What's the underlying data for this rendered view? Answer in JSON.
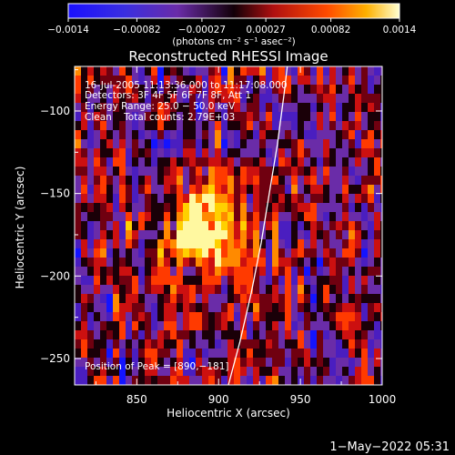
{
  "chart_data": {
    "type": "heatmap",
    "title": "Reconstructed RHESSI Image",
    "xlabel": "Heliocentric X (arcsec)",
    "ylabel": "Heliocentric Y (arcsec)",
    "xlim": [
      812,
      1000
    ],
    "ylim": [
      -266,
      -73
    ],
    "x_ticks": [
      850,
      900,
      950,
      1000
    ],
    "y_ticks": [
      -250,
      -200,
      -150,
      -100
    ],
    "x_tick_labels": [
      "850",
      "900",
      "950",
      "1000"
    ],
    "y_tick_labels": [
      "−250",
      "−200",
      "−150",
      "−100"
    ],
    "colorbar": {
      "range": [
        -0.0014,
        0.0014
      ],
      "ticks": [
        -0.0014,
        -0.00082,
        -0.00027,
        0.00027,
        0.00082,
        0.0014
      ],
      "tick_labels": [
        "−0.0014",
        "−0.00082",
        "−0.00027",
        "0.00027",
        "0.00082",
        "0.0014"
      ],
      "unit_label": "(photons cm⁻² s⁻¹ asec⁻²)"
    },
    "annotations": {
      "time_range": "16-Jul-2005 11:13:36.000 to 11:17:08.000",
      "detectors": "Detectors: 3F 4F 5F 6F 7F 8F, Att 1",
      "energy_range": "Energy Range: 25.0 − 50.0 keV",
      "method_counts": "Clean    Total counts: 2.79E+03",
      "peak": "Position of Peak = [890,−181]"
    },
    "peak_position": [
      890,
      -181
    ],
    "limb_curve": [
      [
        906,
        -266
      ],
      [
        913,
        -240
      ],
      [
        920,
        -210
      ],
      [
        926,
        -180
      ],
      [
        931,
        -150
      ],
      [
        936,
        -120
      ],
      [
        940,
        -90
      ],
      [
        942,
        -73
      ]
    ],
    "timestamp": "1−May−2022 05:31",
    "colors": {
      "background": "#000000",
      "neg_high": "#1414ff",
      "neg_mid": "#6a2ca8",
      "neutral": "#1a0008",
      "pos_mid": "#cc1010",
      "pos_high": "#ff8a00",
      "peak": "#fff8a0",
      "limb": "#ffffff"
    }
  }
}
